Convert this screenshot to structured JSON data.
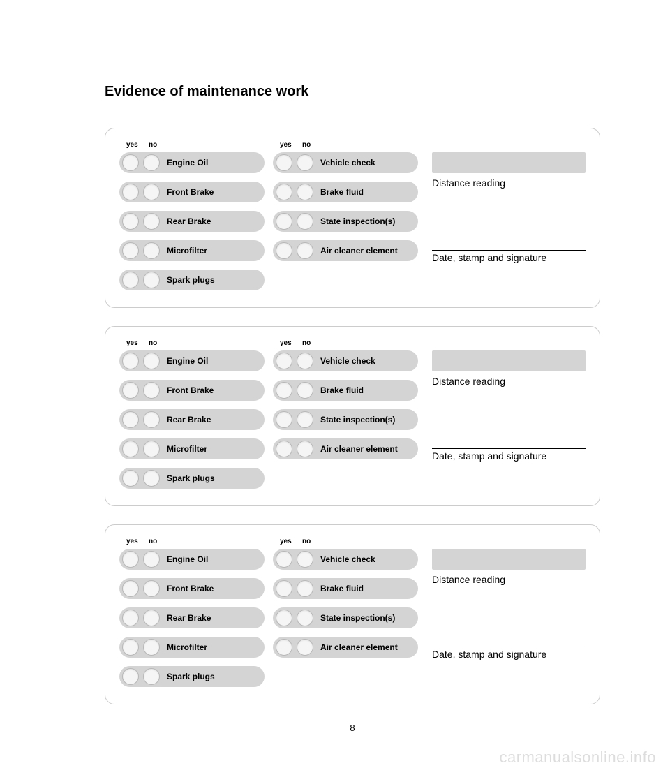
{
  "title": "Evidence of maintenance work",
  "page_number": "8",
  "watermark": "carmanualsonline.info",
  "header_labels": {
    "yes": "yes",
    "no": "no"
  },
  "field_labels": {
    "distance": "Distance reading",
    "signature": "Date, stamp and signature"
  },
  "col1_items": [
    {
      "label": "Engine Oil"
    },
    {
      "label": "Front Brake"
    },
    {
      "label": "Rear Brake"
    },
    {
      "label": "Microfilter"
    },
    {
      "label": "Spark plugs"
    }
  ],
  "col2_items": [
    {
      "label": "Vehicle check"
    },
    {
      "label": "Brake fluid"
    },
    {
      "label": "State inspection(s)"
    },
    {
      "label": "Air cleaner element"
    }
  ],
  "colors": {
    "pill_bg": "#d4d4d4",
    "circle_bg": "#f5f5f5",
    "circle_border": "#b8b8b8",
    "card_border": "#cccccc",
    "text": "#000000",
    "watermark": "#dddddd",
    "page_bg": "#ffffff"
  },
  "card_count": 3
}
